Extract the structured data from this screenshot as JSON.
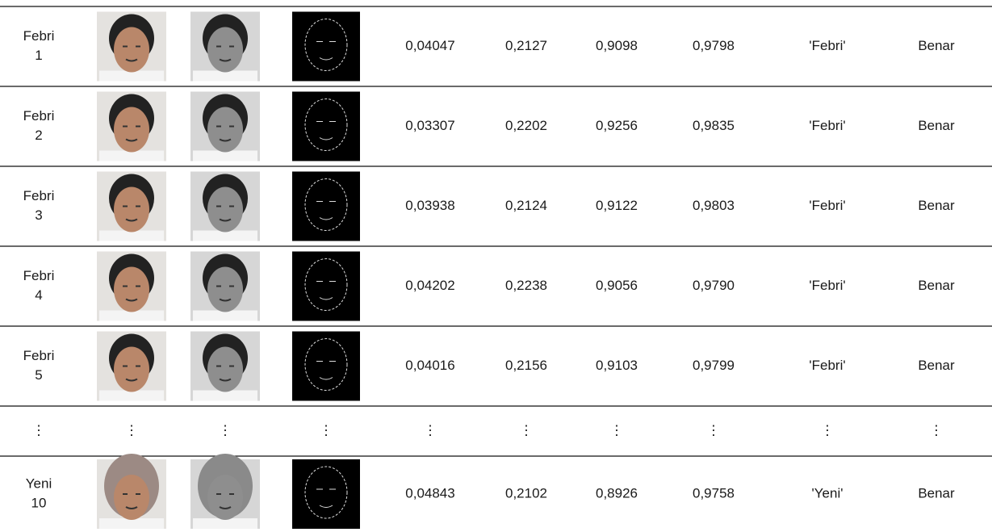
{
  "table": {
    "rows": [
      {
        "label": [
          "Febri",
          "1"
        ],
        "cells": [
          "0,04047",
          "0,2127",
          "0,9098",
          "0,9798",
          "'Febri'",
          "Benar"
        ]
      },
      {
        "label": [
          "Febri",
          "2"
        ],
        "cells": [
          "0,03307",
          "0,2202",
          "0,9256",
          "0,9835",
          "'Febri'",
          "Benar"
        ]
      },
      {
        "label": [
          "Febri",
          "3"
        ],
        "cells": [
          "0,03938",
          "0,2124",
          "0,9122",
          "0,9803",
          "'Febri'",
          "Benar"
        ]
      },
      {
        "label": [
          "Febri",
          "4"
        ],
        "cells": [
          "0,04202",
          "0,2238",
          "0,9056",
          "0,9790",
          "'Febri'",
          "Benar"
        ]
      },
      {
        "label": [
          "Febri",
          "5"
        ],
        "cells": [
          "0,04016",
          "0,2156",
          "0,9103",
          "0,9799",
          "'Febri'",
          "Benar"
        ]
      },
      {
        "cells": [
          "⋮",
          "⋮",
          "⋮",
          "⋮",
          "⋮",
          "⋮",
          "⋮",
          "⋮",
          "⋮",
          "⋮"
        ]
      },
      {
        "label": [
          "Yeni",
          "10"
        ],
        "cells": [
          "0,04843",
          "0,2102",
          "0,8926",
          "0,9758",
          "'Yeni'",
          "Benar"
        ]
      }
    ]
  }
}
